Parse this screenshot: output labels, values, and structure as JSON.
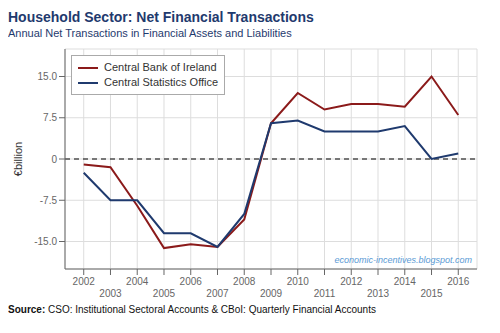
{
  "chart_data": {
    "type": "line",
    "title": "Household Sector: Net Financial Transactions",
    "subtitle": "Annual Net Transactions in Financial Assets and Liabilities",
    "source": "Source: CSO: Institutional Sectoral Accounts & CBoI: Quarterly Financial Accounts",
    "annotations": [
      {
        "text": "economic-incentives.blogspot.com"
      }
    ],
    "ylabel": "€billion",
    "x": [
      2002,
      2003,
      2004,
      2005,
      2006,
      2007,
      2008,
      2009,
      2010,
      2011,
      2012,
      2013,
      2014,
      2015,
      2016
    ],
    "series": [
      {
        "name": "Central Bank of Ireland",
        "color": "#8B1A1A",
        "values": [
          -1.0,
          -1.5,
          -8.5,
          -16.2,
          -15.5,
          -16.0,
          -11.0,
          6.5,
          12.0,
          9.0,
          10.0,
          10.0,
          9.5,
          15.0,
          8.0
        ]
      },
      {
        "name": "Central Statistics Office",
        "color": "#1F3A6E",
        "values": [
          -2.5,
          -7.5,
          -7.5,
          -13.5,
          -13.5,
          -16.0,
          -10.0,
          6.5,
          7.0,
          5.0,
          5.0,
          5.0,
          6.0,
          0.0,
          1.0
        ]
      }
    ],
    "xlim": [
      2001.3,
      2016.7
    ],
    "xticks": [
      2002,
      2003,
      2004,
      2005,
      2006,
      2007,
      2008,
      2009,
      2010,
      2011,
      2012,
      2013,
      2014,
      2015,
      2016
    ],
    "ylim": [
      -20,
      20
    ],
    "yticks": [
      {
        "value": -15.0,
        "label": "-15.0"
      },
      -7.5,
      0,
      7.5,
      {
        "value": 15.0,
        "label": "15.0"
      }
    ],
    "reference_lines": [
      {
        "y": 0,
        "line_style": "dashed"
      }
    ],
    "grid": true,
    "legend": "upper left"
  }
}
